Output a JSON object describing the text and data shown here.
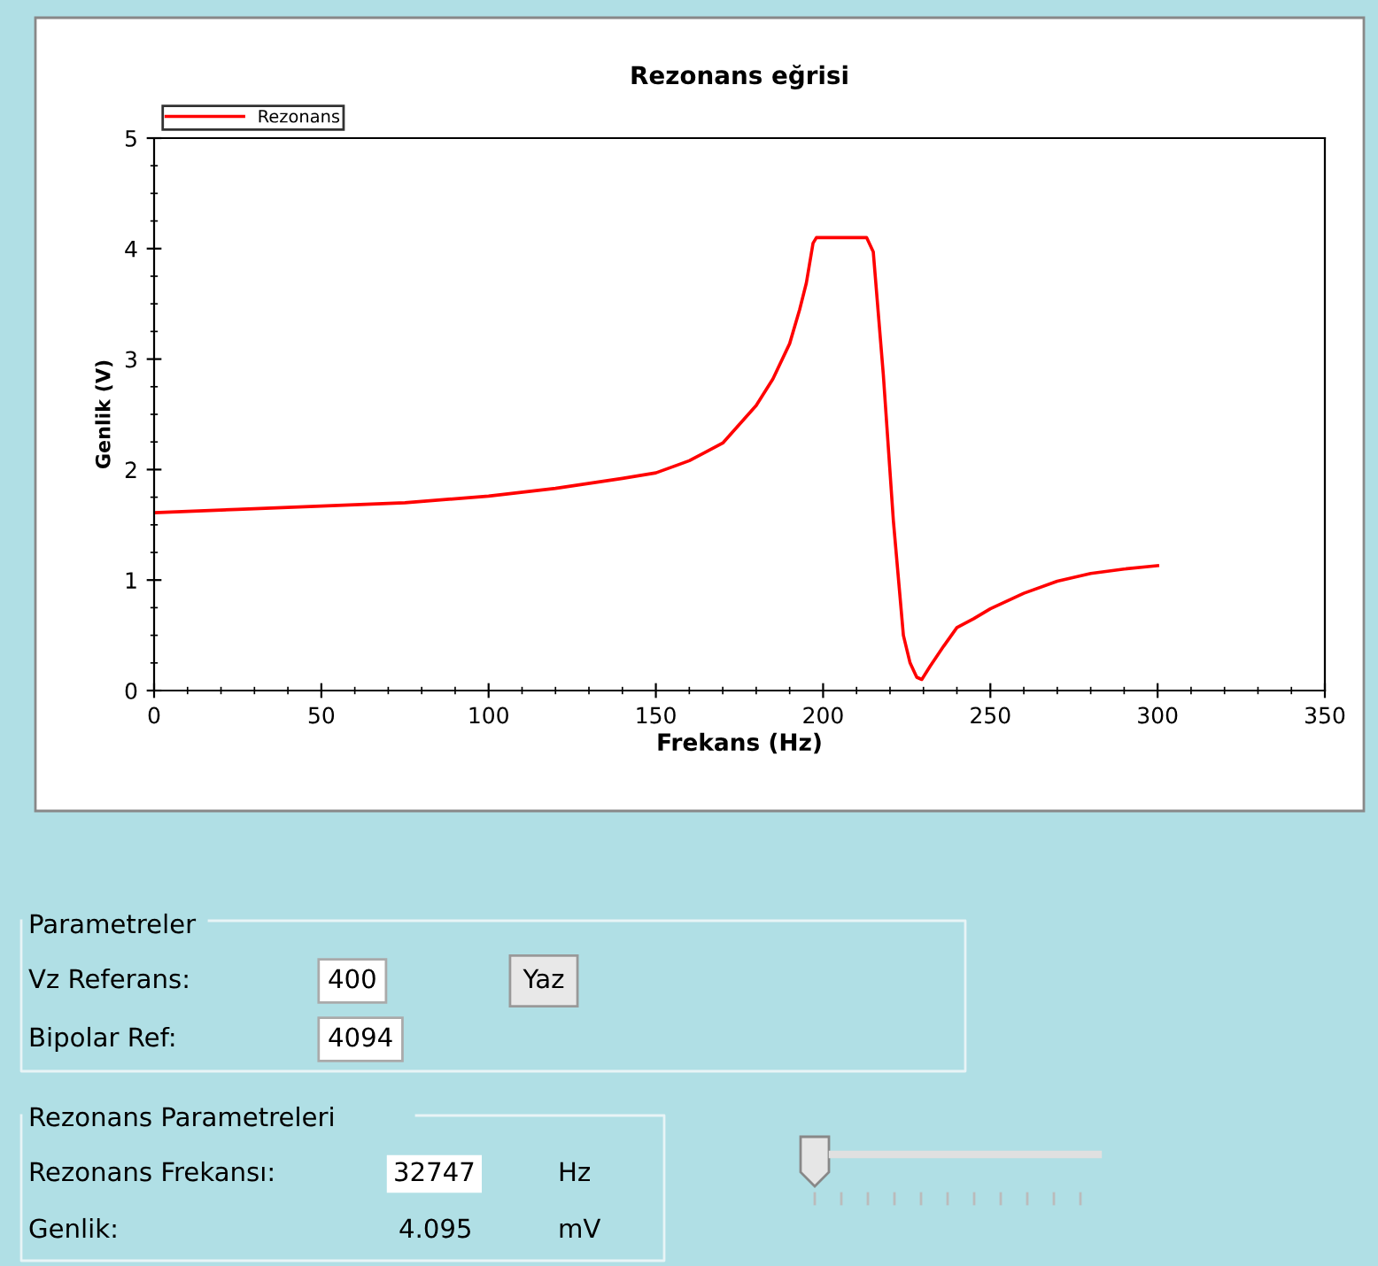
{
  "chart_data": {
    "type": "line",
    "title": "Rezonans eğrisi",
    "xlabel": "Frekans (Hz)",
    "ylabel": "Genlik (V)",
    "x": [
      0,
      25,
      50,
      75,
      100,
      120,
      140,
      150,
      160,
      170,
      180,
      185,
      190,
      193,
      195,
      197,
      198,
      205,
      213,
      215,
      218,
      221,
      224,
      226,
      228,
      229.5,
      232,
      236,
      240,
      245,
      250,
      260,
      270,
      280,
      290,
      300
    ],
    "series": [
      {
        "name": "Rezonans",
        "color": "#ff0000",
        "values": [
          1.61,
          1.64,
          1.67,
          1.7,
          1.76,
          1.83,
          1.92,
          1.97,
          2.08,
          2.24,
          2.58,
          2.82,
          3.14,
          3.45,
          3.69,
          4.05,
          4.1,
          4.1,
          4.1,
          3.97,
          2.86,
          1.54,
          0.5,
          0.25,
          0.12,
          0.1,
          0.22,
          0.4,
          0.57,
          0.65,
          0.74,
          0.88,
          0.99,
          1.06,
          1.1,
          1.13
        ]
      }
    ],
    "xlim": [
      0,
      350
    ],
    "xticks": [
      0,
      50,
      100,
      150,
      200,
      250,
      300,
      350
    ],
    "ylim": [
      0,
      5
    ],
    "yticks": [
      0,
      1,
      2,
      3,
      4,
      5
    ],
    "grid": false,
    "legend": "top left",
    "marker": "none",
    "line_style": "solid",
    "annotations": [
      "Parametreler",
      "Vz Referans:",
      "400",
      "Yaz",
      "Bipolar Ref:",
      "4094",
      "Rezonans Parametreleri",
      "Rezonans Frekansı:",
      "32747",
      "Hz",
      "Genlik:",
      "4.095",
      "mV"
    ]
  }
}
